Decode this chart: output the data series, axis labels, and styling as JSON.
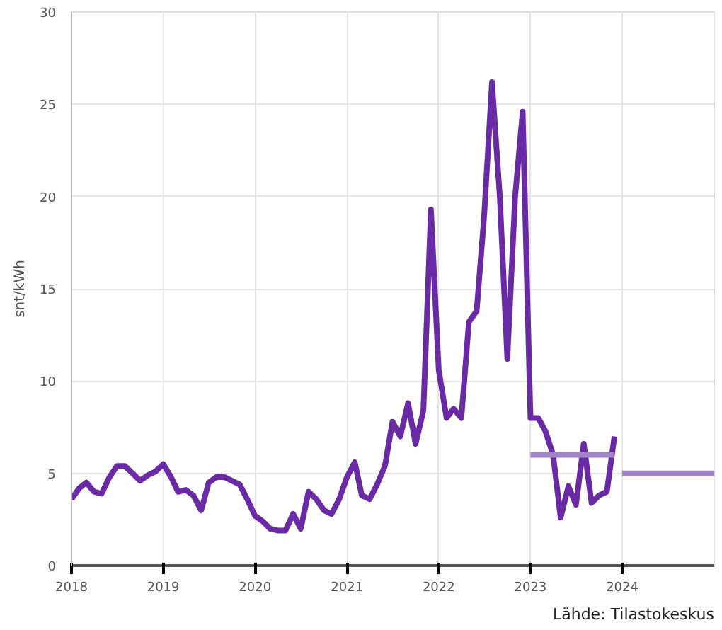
{
  "chart_data": {
    "type": "line",
    "ylabel": "snt/kWh",
    "annotations": [
      "Lähde: Tilastokeskus"
    ],
    "x": [
      "2018-01",
      "2018-02",
      "2018-03",
      "2018-04",
      "2018-05",
      "2018-06",
      "2018-07",
      "2018-08",
      "2018-09",
      "2018-10",
      "2018-11",
      "2018-12",
      "2019-01",
      "2019-02",
      "2019-03",
      "2019-04",
      "2019-05",
      "2019-06",
      "2019-07",
      "2019-08",
      "2019-09",
      "2019-10",
      "2019-11",
      "2019-12",
      "2020-01",
      "2020-02",
      "2020-03",
      "2020-04",
      "2020-05",
      "2020-06",
      "2020-07",
      "2020-08",
      "2020-09",
      "2020-10",
      "2020-11",
      "2020-12",
      "2021-01",
      "2021-02",
      "2021-03",
      "2021-04",
      "2021-05",
      "2021-06",
      "2021-07",
      "2021-08",
      "2021-09",
      "2021-10",
      "2021-11",
      "2021-12",
      "2022-01",
      "2022-02",
      "2022-03",
      "2022-04",
      "2022-05",
      "2022-06",
      "2022-07",
      "2022-08",
      "2022-09",
      "2022-10",
      "2022-11",
      "2022-12",
      "2023-01",
      "2023-02",
      "2023-03",
      "2023-04",
      "2023-05",
      "2023-06",
      "2023-07",
      "2023-08",
      "2023-09",
      "2023-10",
      "2023-11",
      "2023-12"
    ],
    "series": [
      {
        "color": "#6a2aa6",
        "values": [
          3.6,
          4.2,
          4.5,
          4.0,
          3.9,
          4.8,
          5.4,
          5.4,
          5.0,
          4.6,
          4.9,
          5.1,
          5.5,
          4.8,
          4.0,
          4.1,
          3.8,
          3.0,
          4.5,
          4.8,
          4.8,
          4.6,
          4.4,
          3.6,
          2.7,
          2.4,
          2.0,
          1.9,
          1.9,
          2.8,
          2.0,
          4.0,
          3.6,
          3.0,
          2.8,
          3.6,
          4.8,
          5.6,
          3.8,
          3.6,
          4.4,
          5.4,
          7.8,
          7.0,
          8.8,
          6.6,
          8.4,
          19.3,
          10.6,
          8.0,
          8.5,
          8.0,
          13.2,
          13.8,
          19.0,
          26.2,
          20.0,
          11.2,
          20.0,
          24.6,
          8.0,
          8.0,
          7.3,
          6.0,
          2.6,
          4.3,
          3.3,
          6.6,
          3.4,
          3.8,
          4.0,
          7.0
        ]
      },
      {
        "color": "#a184c8",
        "x": [
          "2023-01",
          "2023-12"
        ],
        "values": [
          6.0,
          6.0
        ]
      },
      {
        "color": "#a184c8",
        "x": [
          "2024-01",
          "2025-01"
        ],
        "values": [
          5.0,
          5.0
        ]
      }
    ],
    "xlim": [
      "2018",
      "2025"
    ],
    "xticks": [
      "2018",
      "2019",
      "2020",
      "2021",
      "2022",
      "2023",
      "2024"
    ],
    "ylim": [
      0,
      30
    ],
    "yticks": [
      0,
      5,
      10,
      15,
      20,
      25,
      30
    ],
    "grid": true,
    "line_style": "solid"
  }
}
